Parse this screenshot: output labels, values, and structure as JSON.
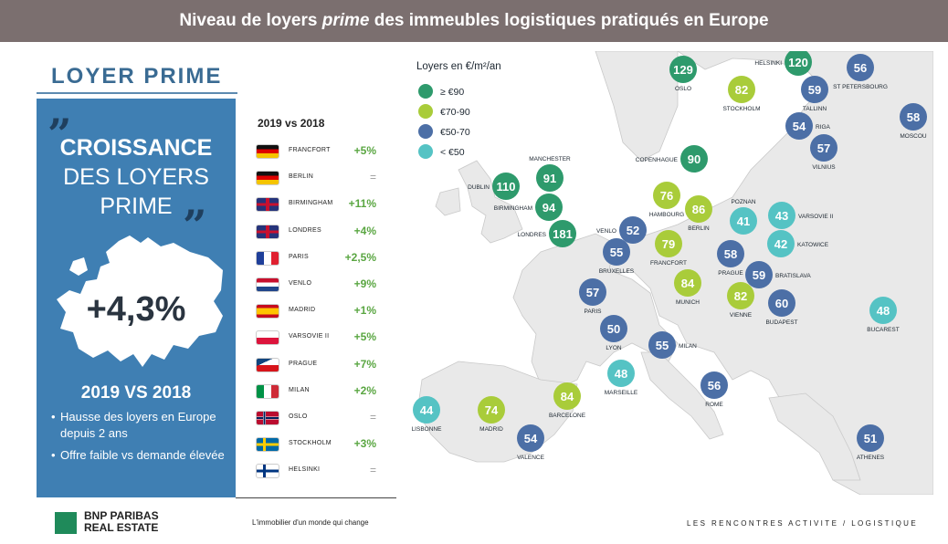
{
  "header": {
    "title_before": "Niveau de loyers ",
    "title_em": "prime",
    "title_after": " des immeubles logistiques pratiqués en Europe"
  },
  "left": {
    "section_title": "LOYER PRIME",
    "quote_open": "”",
    "quote_close": "”",
    "headline_l1": "CROISSANCE",
    "headline_l2": "DES LOYERS",
    "headline_l3": "PRIME",
    "big_value": "+4,3%",
    "vs_label": "2019 VS 2018",
    "bullets": [
      "Hausse des loyers en Europe depuis 2 ans",
      "Offre faible vs demande élevée"
    ]
  },
  "comparison": {
    "header": "2019 vs 2018",
    "rows": [
      {
        "city": "FRANCFORT",
        "value": "+5%",
        "flag": "germany-flag"
      },
      {
        "city": "BERLIN",
        "value": "=",
        "flag": "germany-flag"
      },
      {
        "city": "BIRMINGHAM",
        "value": "+11%",
        "flag": "uk-flag"
      },
      {
        "city": "LONDRES",
        "value": "+4%",
        "flag": "uk-flag"
      },
      {
        "city": "PARIS",
        "value": "+2,5%",
        "flag": "france-flag"
      },
      {
        "city": "VENLO",
        "value": "+9%",
        "flag": "netherlands-flag"
      },
      {
        "city": "MADRID",
        "value": "+1%",
        "flag": "spain-flag"
      },
      {
        "city": "VARSOVIE II",
        "value": "+5%",
        "flag": "poland-flag"
      },
      {
        "city": "PRAGUE",
        "value": "+7%",
        "flag": "czech-flag"
      },
      {
        "city": "MILAN",
        "value": "+2%",
        "flag": "italy-flag"
      },
      {
        "city": "OSLO",
        "value": "=",
        "flag": "norway-flag"
      },
      {
        "city": "STOCKHOLM",
        "value": "+3%",
        "flag": "sweden-flag"
      },
      {
        "city": "HELSINKI",
        "value": "=",
        "flag": "finland-flag"
      }
    ]
  },
  "legend": {
    "title": "Loyers en €/m²/an",
    "items": [
      {
        "label": "≥ €90",
        "color": "#2e9a6c"
      },
      {
        "label": "€70-90",
        "color": "#a9cc3a"
      },
      {
        "label": "€50-70",
        "color": "#4c6fa6"
      },
      {
        "label": "< €50",
        "color": "#55c3c4"
      }
    ]
  },
  "cities": [
    {
      "name": "OSLO",
      "value": "129",
      "category": "≥ €90"
    },
    {
      "name": "HELSINKI",
      "value": "120",
      "category": "≥ €90"
    },
    {
      "name": "ST PETERSBOURG",
      "value": "56",
      "category": "€50-70"
    },
    {
      "name": "STOCKHOLM",
      "value": "82",
      "category": "€70-90"
    },
    {
      "name": "TALLINN",
      "value": "59",
      "category": "€50-70"
    },
    {
      "name": "MOSCOU",
      "value": "58",
      "category": "€50-70"
    },
    {
      "name": "RIGA",
      "value": "54",
      "category": "€50-70"
    },
    {
      "name": "VILNIUS",
      "value": "57",
      "category": "€50-70"
    },
    {
      "name": "COPENHAGUE",
      "value": "90",
      "category": "≥ €90"
    },
    {
      "name": "MANCHESTER",
      "value": "91",
      "category": "≥ €90"
    },
    {
      "name": "DUBLIN",
      "value": "110",
      "category": "≥ €90"
    },
    {
      "name": "BIRMINGHAM",
      "value": "94",
      "category": "≥ €90"
    },
    {
      "name": "LONDRES",
      "value": "181",
      "category": "≥ €90"
    },
    {
      "name": "HAMBOURG",
      "value": "76",
      "category": "€70-90"
    },
    {
      "name": "BERLIN",
      "value": "86",
      "category": "€70-90"
    },
    {
      "name": "POZNAN",
      "value": "41",
      "category": "< €50"
    },
    {
      "name": "VARSOVIE II",
      "value": "43",
      "category": "< €50"
    },
    {
      "name": "KATOWICE",
      "value": "42",
      "category": "< €50"
    },
    {
      "name": "VENLO",
      "value": "52",
      "category": "€50-70"
    },
    {
      "name": "BRUXELLES",
      "value": "55",
      "category": "€50-70"
    },
    {
      "name": "FRANCFORT",
      "value": "79",
      "category": "€70-90"
    },
    {
      "name": "PRAGUE",
      "value": "58",
      "category": "€50-70"
    },
    {
      "name": "BRATISLAVA",
      "value": "59",
      "category": "€50-70"
    },
    {
      "name": "PARIS",
      "value": "57",
      "category": "€50-70"
    },
    {
      "name": "MUNICH",
      "value": "84",
      "category": "€70-90"
    },
    {
      "name": "VIENNE",
      "value": "82",
      "category": "€70-90"
    },
    {
      "name": "BUDAPEST",
      "value": "60",
      "category": "€50-70"
    },
    {
      "name": "BUCAREST",
      "value": "48",
      "category": "< €50"
    },
    {
      "name": "LYON",
      "value": "50",
      "category": "€50-70"
    },
    {
      "name": "MILAN",
      "value": "55",
      "category": "€50-70"
    },
    {
      "name": "MARSEILLE",
      "value": "48",
      "category": "< €50"
    },
    {
      "name": "ROME",
      "value": "56",
      "category": "€50-70"
    },
    {
      "name": "LISBONNE",
      "value": "44",
      "category": "< €50"
    },
    {
      "name": "MADRID",
      "value": "74",
      "category": "€70-90"
    },
    {
      "name": "BARCELONE",
      "value": "84",
      "category": "€70-90"
    },
    {
      "name": "VALENCE",
      "value": "54",
      "category": "€50-70"
    },
    {
      "name": "ATHENES",
      "value": "51",
      "category": "€50-70"
    }
  ],
  "footer": {
    "brand_line1": "BNP PARIBAS",
    "brand_line2": "REAL ESTATE",
    "tagline": "L'immobilier d'un monde qui change",
    "event": "LES RENCONTRES ACTIVITE / LOGISTIQUE"
  }
}
